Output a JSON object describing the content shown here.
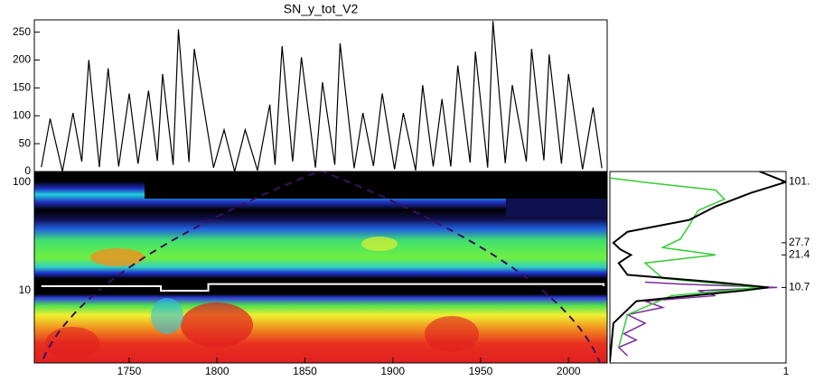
{
  "chart_data": [
    {
      "type": "line",
      "title": "SN_y_tot_V2",
      "x": [
        1700,
        1705,
        1712,
        1718,
        1723,
        1727,
        1733,
        1738,
        1744,
        1750,
        1755,
        1761,
        1766,
        1769,
        1775,
        1778,
        1784,
        1787,
        1798,
        1804,
        1810,
        1816,
        1823,
        1830,
        1833,
        1837,
        1843,
        1848,
        1856,
        1860,
        1867,
        1870,
        1878,
        1883,
        1889,
        1894,
        1901,
        1906,
        1913,
        1917,
        1923,
        1928,
        1933,
        1937,
        1944,
        1947,
        1954,
        1957,
        1964,
        1968,
        1976,
        1979,
        1986,
        1989,
        1996,
        2000,
        2008,
        2014,
        2019
      ],
      "values": [
        8,
        95,
        0,
        105,
        18,
        200,
        8,
        185,
        9,
        140,
        14,
        145,
        19,
        175,
        12,
        255,
        17,
        220,
        7,
        75,
        0,
        75,
        2,
        120,
        12,
        225,
        18,
        205,
        7,
        160,
        12,
        230,
        6,
        105,
        10,
        140,
        4,
        105,
        2,
        155,
        9,
        130,
        9,
        190,
        16,
        215,
        7,
        270,
        15,
        155,
        18,
        220,
        20,
        210,
        14,
        175,
        4,
        115,
        6
      ],
      "color": "#000000",
      "xlim": [
        1696,
        2022
      ],
      "ylim": [
        0,
        272
      ],
      "yticks": [
        0,
        50,
        100,
        150,
        200,
        250
      ]
    },
    {
      "type": "wavelet",
      "log_y": true,
      "xlim": [
        1696,
        2022
      ],
      "xticks": [
        1750,
        1800,
        1850,
        1900,
        1950,
        2000
      ],
      "ylim": [
        2.15,
        126
      ],
      "yticks": [
        10,
        100
      ],
      "ridge": {
        "x": [
          1700,
          1760,
          1768,
          1790,
          1795,
          2020
        ],
        "values": [
          11,
          11,
          10,
          10,
          11.5,
          11
        ],
        "color": "#ffffff"
      }
    },
    {
      "type": "global-spectrum",
      "log_y": true,
      "xlim": [
        0,
        1
      ],
      "xticks": [
        1
      ],
      "ylim": [
        2.15,
        126
      ],
      "peaks": [
        {
          "value": 101,
          "label": "101."
        },
        {
          "value": 27.7,
          "label": "27.7"
        },
        {
          "value": 21.4,
          "label": "21.4"
        },
        {
          "value": 10.7,
          "label": "10.7"
        }
      ],
      "series": [
        {
          "color": "#000000",
          "period": [
            2.2,
            5,
            8,
            10,
            10.7,
            12,
            14,
            18,
            21.4,
            24,
            27.7,
            35,
            45,
            60,
            80,
            101,
            126
          ],
          "values": [
            0,
            0.02,
            0.15,
            0.75,
            0.9,
            0.6,
            0.1,
            0.05,
            0.12,
            0.06,
            0.02,
            0.1,
            0.45,
            0.6,
            0.8,
            1,
            0.85
          ]
        },
        {
          "color": "#33cc33",
          "period": [
            3,
            6,
            9,
            10.7,
            13,
            18,
            21.4,
            25,
            30,
            40,
            55,
            70,
            85,
            100,
            110
          ],
          "values": [
            0.05,
            0.1,
            0.35,
            0.85,
            0.3,
            0.2,
            0.6,
            0.3,
            0.4,
            0.45,
            0.5,
            0.65,
            0.6,
            0.2,
            0
          ]
        },
        {
          "color": "#7a2a9a",
          "period": [
            2.5,
            3,
            3.5,
            4,
            5,
            6,
            7,
            8,
            9,
            10,
            10.7,
            11.5,
            12
          ],
          "values": [
            0.1,
            0.05,
            0.15,
            0.08,
            0.2,
            0.1,
            0.3,
            0.2,
            0.6,
            0.5,
            0.95,
            0.4,
            0.2
          ]
        }
      ]
    }
  ]
}
